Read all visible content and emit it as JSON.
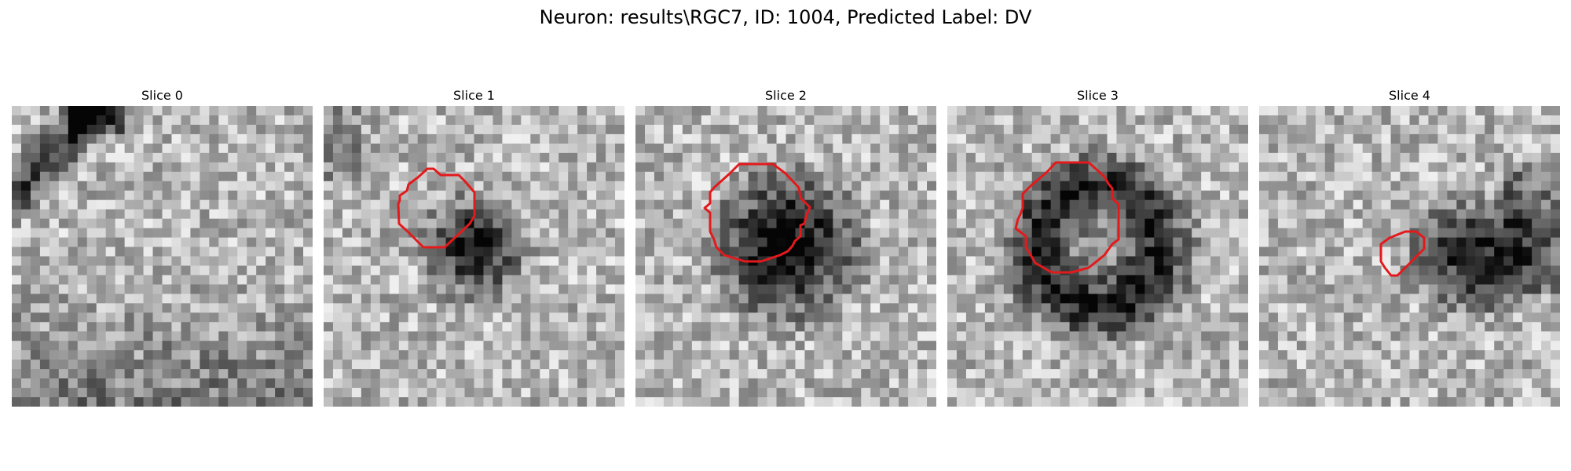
{
  "figure": {
    "title": "Neuron: results\\RGC7, ID: 1004, Predicted Label: DV"
  },
  "panels": [
    {
      "title": "Slice 0",
      "has_contour": false
    },
    {
      "title": "Slice 1",
      "has_contour": true
    },
    {
      "title": "Slice 2",
      "has_contour": true
    },
    {
      "title": "Slice 3",
      "has_contour": true
    },
    {
      "title": "Slice 4",
      "has_contour": true
    }
  ],
  "colors": {
    "contour": "#e31a1c",
    "colormap": "grayscale"
  }
}
